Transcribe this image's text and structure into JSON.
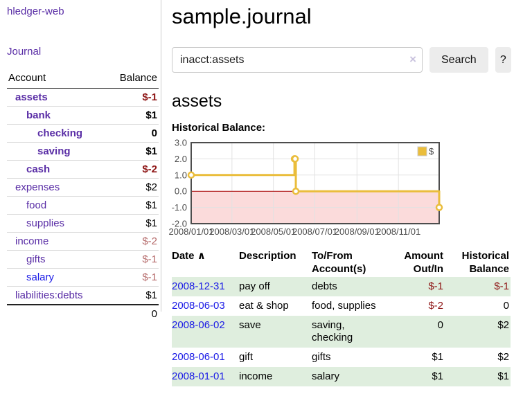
{
  "colors": {
    "link_purple": "#5a2ea6",
    "link_blue": "#1a1ae6",
    "negative_strong": "#8e1515",
    "negative_muted": "#b56a6a",
    "row_shaded_green": "#dfeede",
    "button_gray": "#ececec"
  },
  "sidebar": {
    "brand": "hledger-web",
    "nav_journal": "Journal",
    "table": {
      "col_account": "Account",
      "col_balance": "Balance",
      "accounts": [
        {
          "name": "assets",
          "depth": 1,
          "bold": true,
          "balance": "$-1",
          "neg": "strong"
        },
        {
          "name": "bank",
          "depth": 2,
          "bold": true,
          "balance": "$1",
          "neg": "none"
        },
        {
          "name": "checking",
          "depth": 3,
          "bold": true,
          "balance": "0",
          "neg": "none"
        },
        {
          "name": "saving",
          "depth": 3,
          "bold": true,
          "balance": "$1",
          "neg": "none"
        },
        {
          "name": "cash",
          "depth": 2,
          "bold": true,
          "balance": "$-2",
          "neg": "strong"
        },
        {
          "name": "expenses",
          "depth": 1,
          "bold": false,
          "balance": "$2",
          "neg": "none"
        },
        {
          "name": "food",
          "depth": 2,
          "bold": false,
          "balance": "$1",
          "neg": "none"
        },
        {
          "name": "supplies",
          "depth": 2,
          "bold": false,
          "balance": "$1",
          "neg": "none"
        },
        {
          "name": "income",
          "depth": 1,
          "bold": false,
          "balance": "$-2",
          "neg": "muted"
        },
        {
          "name": "gifts",
          "depth": 2,
          "bold": false,
          "balance": "$-1",
          "neg": "muted"
        },
        {
          "name": "salary",
          "depth": 2,
          "bold": false,
          "balance": "$-1",
          "neg": "muted",
          "link_color": "blue"
        },
        {
          "name": "liabilities:debts",
          "depth": 1,
          "bold": false,
          "balance": "$1",
          "neg": "none"
        }
      ],
      "total": "0"
    }
  },
  "header": {
    "title": "sample.journal"
  },
  "search": {
    "value": "inacct:assets",
    "clear_icon": "×",
    "button": "Search",
    "help_button": "?"
  },
  "account_page": {
    "heading": "assets",
    "chart_label": "Historical Balance:"
  },
  "chart_data": {
    "type": "line",
    "style": "step",
    "title": "Historical Balance",
    "series": [
      {
        "name": "$",
        "color": "#eabd3b",
        "points": [
          {
            "date": "2008-01-01",
            "value": 1
          },
          {
            "date": "2008-06-01",
            "value": 2
          },
          {
            "date": "2008-06-02",
            "value": 2
          },
          {
            "date": "2008-06-03",
            "value": 0
          },
          {
            "date": "2008-12-31",
            "value": -1
          }
        ]
      }
    ],
    "x_range": [
      "2008-01-01",
      "2008-12-31"
    ],
    "x_ticks": [
      "2008/01/01",
      "2008/03/01",
      "2008/05/01",
      "2008/07/01",
      "2008/09/01",
      "2008/11/01"
    ],
    "y_ticks": [
      3.0,
      2.0,
      1.0,
      0.0,
      -1.0,
      -2.0
    ],
    "y_range": [
      -2,
      3
    ],
    "grid": true,
    "legend_position": "top-right",
    "legend_label": "$",
    "zero_line_color": "#a40000",
    "negative_region_color": "#fbdbdb",
    "grid_color": "#e2e2e2",
    "border_color": "#4d4d4d",
    "marker_fill": "#ffffff",
    "legend_swatch_border": "#cccccc"
  },
  "register": {
    "headers": {
      "date": "Date",
      "sort_icon": "∧",
      "description": "Description",
      "accounts": "To/From\nAccount(s)",
      "amount": "Amount\nOut/In",
      "balance": "Historical\nBalance"
    },
    "rows": [
      {
        "date": "2008-12-31",
        "description": "pay off",
        "accounts": "debts",
        "amount": "$-1",
        "amount_neg": true,
        "balance": "$-1",
        "balance_neg": true,
        "shaded": true
      },
      {
        "date": "2008-06-03",
        "description": "eat & shop",
        "accounts": "food, supplies",
        "amount": "$-2",
        "amount_neg": true,
        "balance": "0",
        "balance_neg": false,
        "shaded": false
      },
      {
        "date": "2008-06-02",
        "description": "save",
        "accounts": "saving, checking",
        "amount": "0",
        "amount_neg": false,
        "balance": "$2",
        "balance_neg": false,
        "shaded": true
      },
      {
        "date": "2008-06-01",
        "description": "gift",
        "accounts": "gifts",
        "amount": "$1",
        "amount_neg": false,
        "balance": "$2",
        "balance_neg": false,
        "shaded": false
      },
      {
        "date": "2008-01-01",
        "description": "income",
        "accounts": "salary",
        "amount": "$1",
        "amount_neg": false,
        "balance": "$1",
        "balance_neg": false,
        "shaded": true
      }
    ]
  }
}
